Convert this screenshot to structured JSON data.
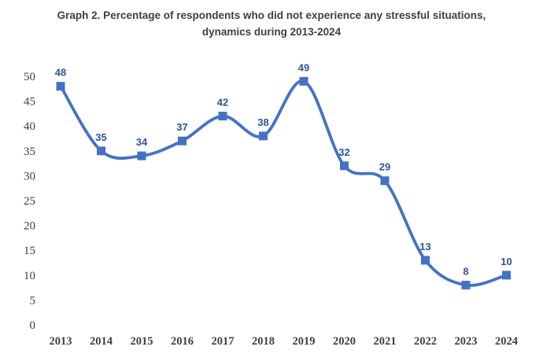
{
  "title": {
    "line1": "Graph 2. Percentage of respondents who did not experience any stressful situations,",
    "line2": "dynamics during 2013-2024"
  },
  "colors": {
    "line": "#4472C4",
    "marker": "#4472C4",
    "data_label": "#2F5496",
    "axis_text": "#404040",
    "title_text": "#3F3F3F",
    "background": "#FFFFFF"
  },
  "chart_data": {
    "type": "line",
    "title": "Graph 2. Percentage of respondents who did not experience any stressful situations, dynamics during 2013-2024",
    "categories": [
      "2013",
      "2014",
      "2015",
      "2016",
      "2017",
      "2018",
      "2019",
      "2020",
      "2021",
      "2022",
      "2023",
      "2024"
    ],
    "series": [
      {
        "name": "Percentage of respondents who did not experience any stressful situations",
        "values": [
          48,
          35,
          34,
          37,
          42,
          38,
          49,
          32,
          29,
          13,
          8,
          10
        ]
      }
    ],
    "xlabel": "",
    "ylabel": "",
    "ylim": [
      0,
      50
    ],
    "y_ticks": [
      0,
      5,
      10,
      15,
      20,
      25,
      30,
      35,
      40,
      45,
      50
    ],
    "grid": false,
    "legend": false,
    "axis_lines": false,
    "marker_shape": "square",
    "line_style": "smooth",
    "data_labels_shown": true
  }
}
